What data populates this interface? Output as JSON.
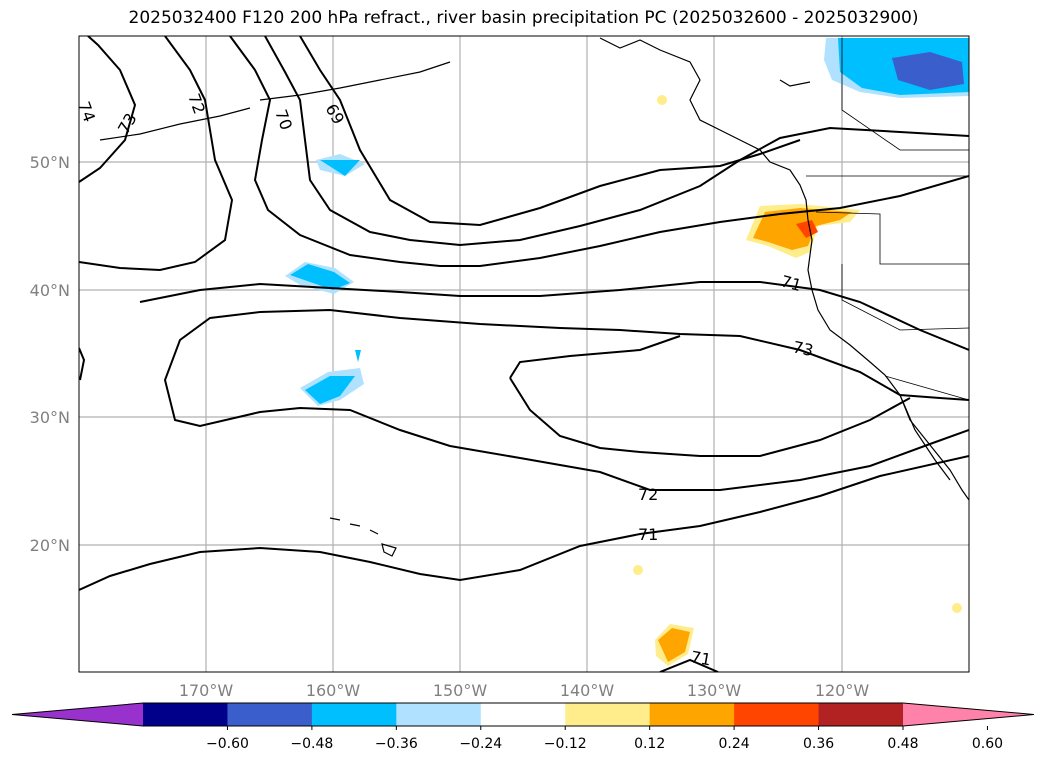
{
  "title": "2025032400 F120 200 hPa refract., river basin precipitation PC (2025032600 - 2025032900)",
  "lat_labels": [
    "50°N",
    "40°N",
    "30°N",
    "20°N"
  ],
  "lon_labels": [
    "170°W",
    "160°W",
    "150°W",
    "140°W",
    "130°W",
    "120°W"
  ],
  "contour_labels": [
    "74",
    "73",
    "72",
    "70",
    "69",
    "71",
    "73",
    "72",
    "71",
    "71"
  ],
  "colorbar": {
    "colors": [
      "#9932cc",
      "#00008b",
      "#3a5fcd",
      "#00bfff",
      "#b0e2ff",
      "#ffffff",
      "#ffec8b",
      "#ffa500",
      "#ff4500",
      "#b22222",
      "#ff82ab"
    ],
    "tick_labels": [
      "−0.60",
      "−0.48",
      "−0.36",
      "−0.24",
      "−0.12",
      "0.12",
      "0.24",
      "0.36",
      "0.48",
      "0.60"
    ]
  },
  "colors": {
    "grid": "#b0b0b0",
    "contour": "#000000",
    "tick_text": "#808080"
  }
}
